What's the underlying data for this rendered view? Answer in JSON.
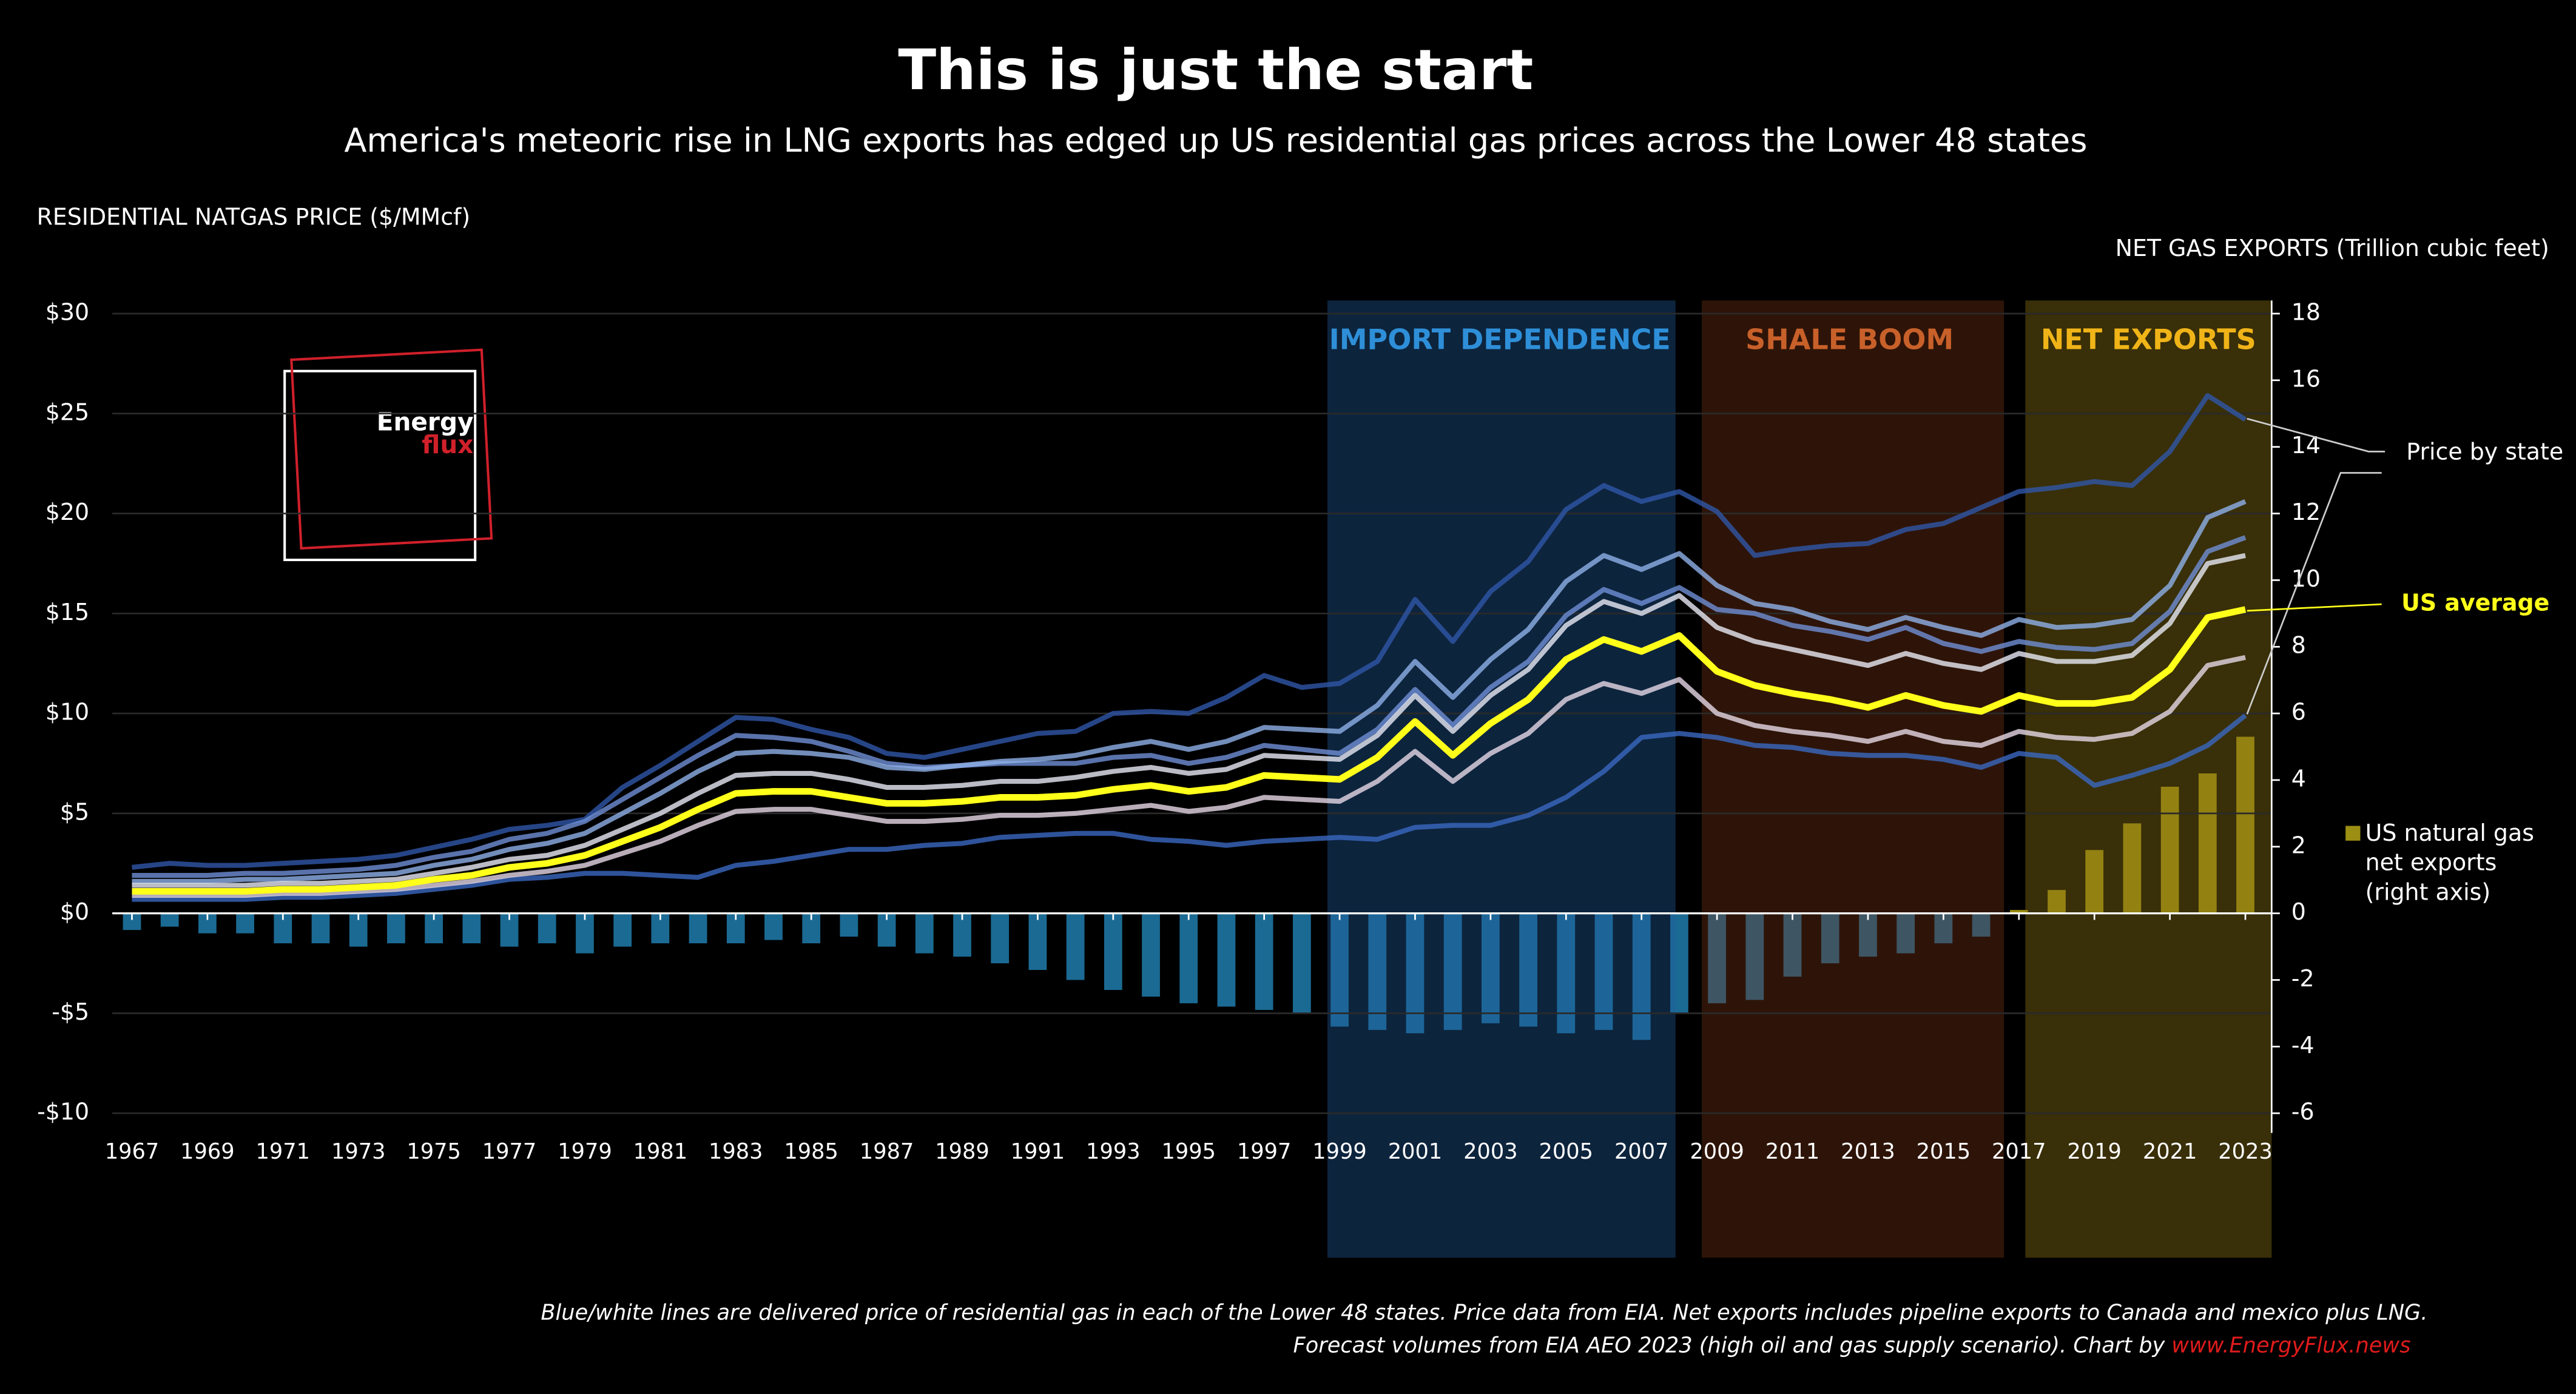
{
  "chart_data": {
    "type": "line",
    "title": "This is just the start",
    "subtitle": "America's meteoric rise in LNG exports has edged up US residential gas prices across the Lower 48 states",
    "y_label": "RESIDENTIAL NATGAS PRICE ($/MMcf)",
    "y2_label": "NET GAS EXPORTS  (Trillion cubic feet)",
    "bands": [
      "IMPORT DEPENDENCE",
      "SHALE BOOM",
      "NET EXPORTS"
    ],
    "band_colors": [
      "#2e8fd8",
      "#c8602a",
      "#f0b418"
    ],
    "annotations": [
      "Price by state"
    ],
    "logo": [
      "Energy",
      "flux"
    ],
    "note": [
      "Blue/white lines are delivered price of residential gas in each of the Lower 48 states. Price data from EIA. Net exports includes pipeline exports to Canada and mexico plus LNG.",
      "Forecast volumes from EIA AEO 2023 (high oil and gas supply scenario). Chart by"
    ],
    "source_link": "www.EnergyFlux.news",
    "x": [
      1967,
      1968,
      1969,
      1970,
      1971,
      1972,
      1973,
      1974,
      1975,
      1976,
      1977,
      1978,
      1979,
      1980,
      1981,
      1982,
      1983,
      1984,
      1985,
      1986,
      1987,
      1988,
      1989,
      1990,
      1991,
      1992,
      1993,
      1994,
      1995,
      1996,
      1997,
      1998,
      1999,
      2000,
      2001,
      2002,
      2003,
      2004,
      2005,
      2006,
      2007,
      2008,
      2009,
      2010,
      2011,
      2012,
      2013,
      2014,
      2015,
      2016,
      2017,
      2018,
      2019,
      2020,
      2021,
      2022,
      2023
    ],
    "xlim": [
      1967,
      2023
    ],
    "xticks": [
      1967,
      1969,
      1971,
      1973,
      1975,
      1977,
      1979,
      1981,
      1983,
      1985,
      1987,
      1989,
      1991,
      1993,
      1995,
      1997,
      1999,
      2001,
      2003,
      2005,
      2007,
      2009,
      2011,
      2013,
      2015,
      2017,
      2019,
      2021,
      2023
    ],
    "ylim": [
      -10,
      30
    ],
    "yticks": [
      {
        "value": -10,
        "label": "-$10"
      },
      {
        "value": -5,
        "label": "-$5"
      },
      {
        "value": 0,
        "label": "$0"
      },
      {
        "value": 5,
        "label": "$5"
      },
      {
        "value": 10,
        "label": "$10"
      },
      {
        "value": 15,
        "label": "$15"
      },
      {
        "value": 20,
        "label": "$20"
      },
      {
        "value": 25,
        "label": "$25"
      },
      {
        "value": 30,
        "label": "$30"
      }
    ],
    "y2lim": [
      -6,
      18
    ],
    "y2ticks": [
      -6,
      -4,
      -2,
      0,
      2,
      4,
      6,
      8,
      10,
      12,
      14,
      16,
      18
    ],
    "series": [
      {
        "name": "US natural gas net exports (right axis)",
        "type": "bar",
        "axis": "y2",
        "color": "#1b6a93",
        "positive_color": "#9c8e12",
        "values": [
          -0.5,
          -0.4,
          -0.6,
          -0.6,
          -0.9,
          -0.9,
          -1.0,
          -0.9,
          -0.9,
          -0.9,
          -1.0,
          -0.9,
          -1.2,
          -1.0,
          -0.9,
          -0.9,
          -0.9,
          -0.8,
          -0.9,
          -0.7,
          -1.0,
          -1.2,
          -1.3,
          -1.5,
          -1.7,
          -2.0,
          -2.3,
          -2.5,
          -2.7,
          -2.8,
          -2.9,
          -3.0,
          -3.4,
          -3.5,
          -3.6,
          -3.5,
          -3.3,
          -3.4,
          -3.6,
          -3.5,
          -3.8,
          -3.0,
          -2.7,
          -2.6,
          -1.9,
          -1.5,
          -1.3,
          -1.2,
          -0.9,
          -0.7,
          0.1,
          0.7,
          1.9,
          2.7,
          3.8,
          4.2,
          5.3
        ]
      },
      {
        "color": "#2f56a8",
        "values": [
          2.3,
          2.5,
          2.4,
          2.4,
          2.5,
          2.6,
          2.7,
          2.9,
          3.3,
          3.7,
          4.2,
          4.4,
          4.7,
          6.3,
          7.4,
          8.6,
          9.8,
          9.7,
          9.2,
          8.8,
          8.0,
          7.8,
          8.2,
          8.6,
          9.0,
          9.1,
          10.0,
          10.1,
          10.0,
          10.8,
          11.9,
          11.3,
          11.5,
          12.6,
          15.7,
          13.6,
          16.1,
          17.6,
          20.2,
          21.4,
          20.6,
          21.1,
          20.1,
          17.9,
          18.2,
          18.4,
          18.5,
          19.2,
          19.5,
          20.3,
          21.1,
          21.3,
          21.6,
          21.4,
          23.1,
          25.9,
          24.7
        ]
      },
      {
        "color": "#3a68c0",
        "values": [
          0.7,
          0.7,
          0.7,
          0.7,
          0.8,
          0.8,
          0.9,
          1.0,
          1.2,
          1.4,
          1.7,
          1.8,
          2.0,
          2.0,
          1.9,
          1.8,
          2.4,
          2.6,
          2.9,
          3.2,
          3.2,
          3.4,
          3.5,
          3.8,
          3.9,
          4.0,
          4.0,
          3.7,
          3.6,
          3.4,
          3.6,
          3.7,
          3.8,
          3.7,
          4.3,
          4.4,
          4.4,
          4.9,
          5.8,
          7.1,
          8.8,
          9.0,
          8.8,
          8.4,
          8.3,
          8.0,
          7.9,
          7.9,
          7.7,
          7.3,
          8.0,
          7.8,
          6.4,
          6.9,
          7.5,
          8.4,
          9.9
        ]
      },
      {
        "color": "#6f8fd6",
        "values": [
          1.9,
          1.9,
          1.9,
          2.0,
          2.0,
          2.1,
          2.2,
          2.4,
          2.8,
          3.1,
          3.7,
          4.0,
          4.6,
          5.7,
          6.8,
          7.9,
          8.9,
          8.8,
          8.6,
          8.1,
          7.5,
          7.3,
          7.4,
          7.5,
          7.5,
          7.5,
          7.8,
          7.9,
          7.5,
          7.8,
          8.4,
          8.2,
          8.0,
          9.2,
          11.2,
          9.4,
          11.3,
          12.6,
          14.9,
          16.2,
          15.5,
          16.3,
          15.2,
          15.0,
          14.4,
          14.1,
          13.7,
          14.3,
          13.5,
          13.1,
          13.6,
          13.3,
          13.2,
          13.5,
          15.1,
          18.1,
          18.8
        ]
      },
      {
        "color": "#8fb0e8",
        "values": [
          1.6,
          1.6,
          1.6,
          1.7,
          1.7,
          1.8,
          1.9,
          2.0,
          2.4,
          2.7,
          3.2,
          3.5,
          4.0,
          5.0,
          6.0,
          7.1,
          8.0,
          8.1,
          8.0,
          7.8,
          7.3,
          7.2,
          7.4,
          7.6,
          7.7,
          7.9,
          8.3,
          8.6,
          8.2,
          8.6,
          9.3,
          9.2,
          9.1,
          10.4,
          12.6,
          10.8,
          12.7,
          14.2,
          16.6,
          17.9,
          17.2,
          18.0,
          16.4,
          15.5,
          15.2,
          14.6,
          14.2,
          14.8,
          14.3,
          13.9,
          14.7,
          14.3,
          14.4,
          14.7,
          16.4,
          19.8,
          20.6
        ]
      },
      {
        "color": "#e8eaf5",
        "values": [
          1.4,
          1.4,
          1.4,
          1.4,
          1.5,
          1.5,
          1.6,
          1.7,
          2.0,
          2.3,
          2.7,
          2.9,
          3.4,
          4.2,
          5.0,
          6.0,
          6.9,
          7.0,
          7.0,
          6.7,
          6.3,
          6.3,
          6.4,
          6.6,
          6.6,
          6.8,
          7.1,
          7.3,
          7.0,
          7.2,
          7.9,
          7.8,
          7.7,
          8.9,
          10.9,
          9.1,
          10.9,
          12.2,
          14.4,
          15.6,
          15.0,
          15.9,
          14.3,
          13.6,
          13.2,
          12.8,
          12.4,
          13.0,
          12.5,
          12.2,
          13.0,
          12.6,
          12.6,
          12.9,
          14.5,
          17.5,
          17.9
        ]
      },
      {
        "color": "#e6d8e6",
        "values": [
          0.9,
          0.9,
          0.9,
          0.9,
          1.0,
          1.0,
          1.1,
          1.2,
          1.4,
          1.6,
          1.9,
          2.1,
          2.4,
          3.0,
          3.6,
          4.4,
          5.1,
          5.2,
          5.2,
          4.9,
          4.6,
          4.6,
          4.7,
          4.9,
          4.9,
          5.0,
          5.2,
          5.4,
          5.1,
          5.3,
          5.8,
          5.7,
          5.6,
          6.6,
          8.1,
          6.6,
          8.0,
          9.0,
          10.7,
          11.5,
          11.0,
          11.7,
          10.0,
          9.4,
          9.1,
          8.9,
          8.6,
          9.1,
          8.6,
          8.4,
          9.1,
          8.8,
          8.7,
          9.0,
          10.1,
          12.4,
          12.8
        ]
      },
      {
        "name": "US average",
        "color": "#ffff1a",
        "values": [
          1.1,
          1.1,
          1.1,
          1.1,
          1.2,
          1.2,
          1.3,
          1.4,
          1.7,
          1.9,
          2.3,
          2.5,
          2.9,
          3.6,
          4.3,
          5.2,
          6.0,
          6.1,
          6.1,
          5.8,
          5.5,
          5.5,
          5.6,
          5.8,
          5.8,
          5.9,
          6.2,
          6.4,
          6.1,
          6.3,
          6.9,
          6.8,
          6.7,
          7.8,
          9.6,
          7.9,
          9.5,
          10.7,
          12.7,
          13.7,
          13.1,
          13.9,
          12.1,
          11.4,
          11.0,
          10.7,
          10.3,
          10.9,
          10.4,
          10.1,
          10.9,
          10.5,
          10.5,
          10.8,
          12.2,
          14.8,
          15.2
        ]
      }
    ]
  }
}
